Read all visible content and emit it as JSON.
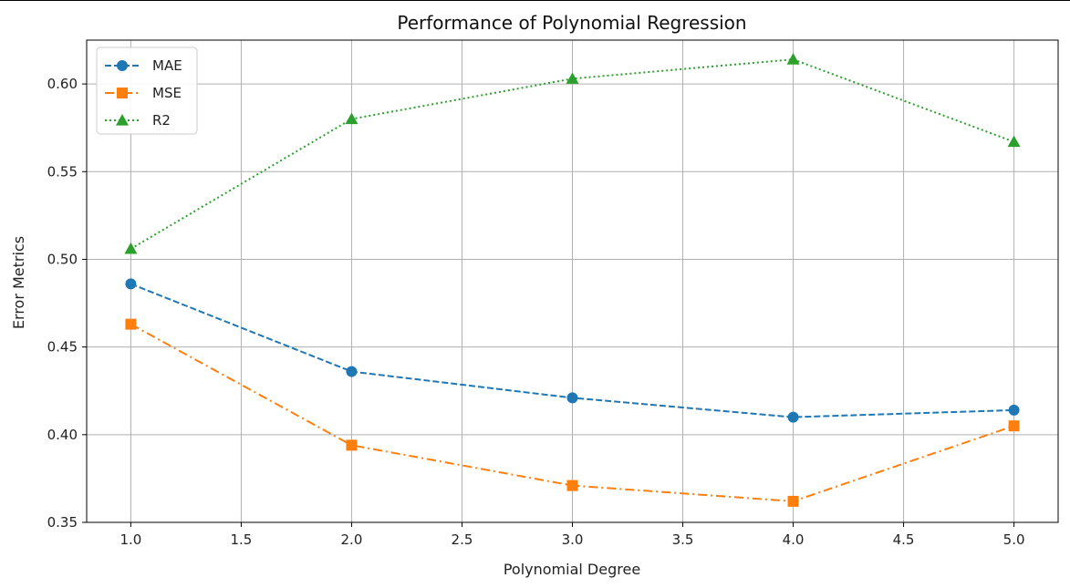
{
  "chart_data": {
    "type": "line",
    "title": "Performance of Polynomial Regression",
    "xlabel": "Polynomial Degree",
    "ylabel": "Error Metrics",
    "x": [
      1.0,
      2.0,
      3.0,
      4.0,
      5.0
    ],
    "xlim": [
      0.8,
      5.2
    ],
    "ylim": [
      0.35,
      0.625
    ],
    "xticks": [
      "1.0",
      "1.5",
      "2.0",
      "2.5",
      "3.0",
      "3.5",
      "4.0",
      "4.5",
      "5.0"
    ],
    "xtick_values": [
      1.0,
      1.5,
      2.0,
      2.5,
      3.0,
      3.5,
      4.0,
      4.5,
      5.0
    ],
    "yticks": [
      "0.35",
      "0.40",
      "0.45",
      "0.50",
      "0.55",
      "0.60"
    ],
    "ytick_values": [
      0.35,
      0.4,
      0.45,
      0.5,
      0.55,
      0.6
    ],
    "grid": true,
    "legend_position": "top-left",
    "series": [
      {
        "name": "MAE",
        "values": [
          0.486,
          0.436,
          0.421,
          0.41,
          0.414
        ],
        "color": "#1f77b4",
        "marker": "circle",
        "linestyle": "dashed"
      },
      {
        "name": "MSE",
        "values": [
          0.463,
          0.394,
          0.371,
          0.362,
          0.405
        ],
        "color": "#ff7f0e",
        "marker": "square",
        "linestyle": "dashdot"
      },
      {
        "name": "R2",
        "values": [
          0.506,
          0.58,
          0.603,
          0.614,
          0.567
        ],
        "color": "#2ca02c",
        "marker": "triangle",
        "linestyle": "dotted"
      }
    ]
  }
}
